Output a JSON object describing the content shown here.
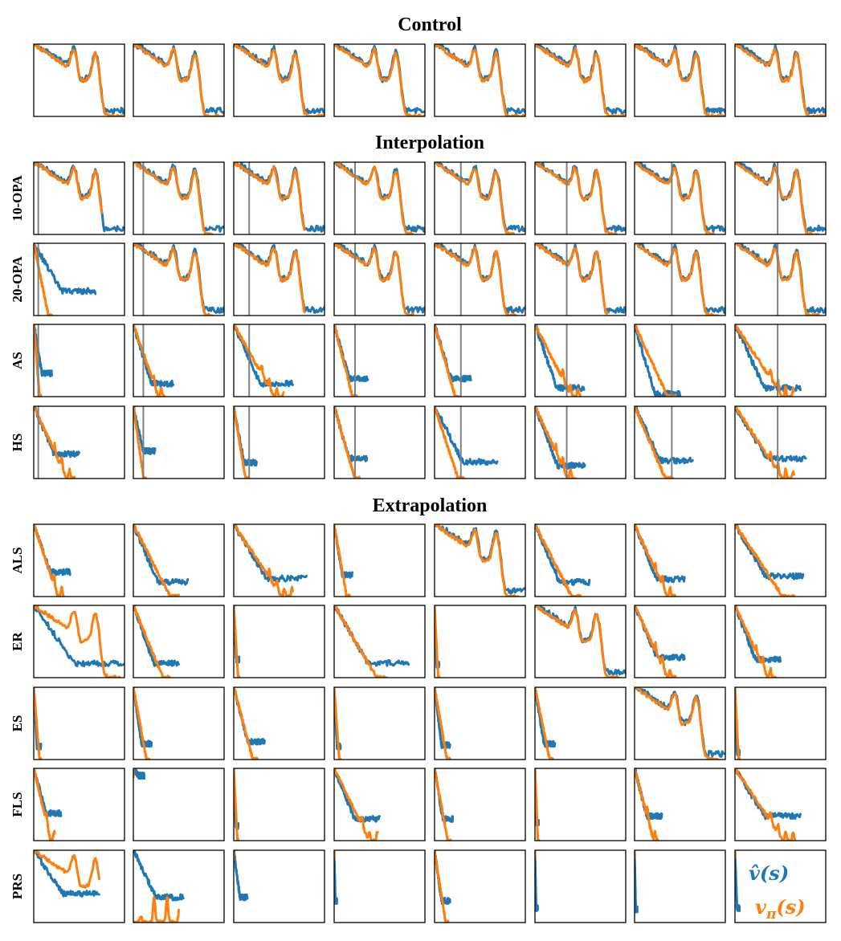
{
  "sections": [
    {
      "title": "Control",
      "rows": [
        ""
      ]
    },
    {
      "title": "Interpolation",
      "rows": [
        "10-OPA",
        "20-OPA",
        "AS",
        "HS"
      ]
    },
    {
      "title": "Extrapolation",
      "rows": [
        "ALS",
        "ER",
        "ES",
        "FLS",
        "PRS"
      ]
    }
  ],
  "legend": {
    "estimate": "v̂(s)",
    "true": "v_π(s)"
  },
  "colors": {
    "estimate": "#1f77b4",
    "true": "#ff7f0e",
    "marker": "#808080"
  },
  "chart_data": {
    "type": "line",
    "layout": "small-multiples grid, 10 rows x 8 columns",
    "axes": "no ticks or axis labels shown",
    "series": [
      {
        "key": "estimate",
        "label_ref": "legend.estimate",
        "color": "#1f77b4"
      },
      {
        "key": "true",
        "label_ref": "legend.true",
        "color": "#ff7f0e"
      }
    ],
    "rows": [
      {
        "label": "",
        "markers": null,
        "panels": [
          {
            "b": 1.0,
            "o": 1.0
          },
          {
            "b": 1.0,
            "o": 1.0
          },
          {
            "b": 1.0,
            "o": 1.0
          },
          {
            "b": 1.0,
            "o": 1.0
          },
          {
            "b": 1.0,
            "o": 1.0
          },
          {
            "b": 1.0,
            "o": 1.0
          },
          {
            "b": 1.0,
            "o": 1.0
          },
          {
            "b": 1.0,
            "o": 1.0
          }
        ]
      },
      {
        "label": "10-OPA",
        "markers": [
          0.05,
          0.11,
          0.17,
          0.23,
          0.29,
          0.35,
          0.41,
          0.47
        ],
        "panels": [
          {
            "b": 1.0,
            "o": 0.75
          },
          {
            "b": 1.0,
            "o": 0.87
          },
          {
            "b": 1.0,
            "o": 0.78
          },
          {
            "b": 1.0,
            "o": 0.87
          },
          {
            "b": 1.0,
            "o": 0.87
          },
          {
            "b": 1.0,
            "o": 0.9
          },
          {
            "b": 1.0,
            "o": 0.87
          },
          {
            "b": 1.0,
            "o": 0.92
          }
        ]
      },
      {
        "label": "20-OPA",
        "markers": [
          0.05,
          0.11,
          0.17,
          0.23,
          0.29,
          0.35,
          0.41,
          0.47
        ],
        "panels": [
          {
            "b": 0.68,
            "o": 0.2,
            "bf": 0.66
          },
          {
            "b": 1.0,
            "o": 0.87
          },
          {
            "b": 1.0,
            "o": 0.78
          },
          {
            "b": 1.0,
            "o": 0.87
          },
          {
            "b": 1.0,
            "o": 0.9
          },
          {
            "b": 1.0,
            "o": 0.8
          },
          {
            "b": 1.0,
            "o": 0.92
          },
          {
            "b": 1.0,
            "o": 0.92
          }
        ]
      },
      {
        "label": "AS",
        "markers": [
          0.05,
          0.11,
          0.17,
          0.23,
          0.29,
          0.35,
          0.41,
          0.47
        ],
        "panels": [
          {
            "b": 0.2,
            "o": 0.08,
            "bf": 0.68
          },
          {
            "b": 0.44,
            "o": 0.34,
            "bf": 0.82,
            "bumps": true
          },
          {
            "b": 0.65,
            "o": 0.55,
            "bf": 0.82,
            "bumps": true
          },
          {
            "b": 0.37,
            "o": 0.25,
            "bf": 0.75
          },
          {
            "b": 0.4,
            "o": 0.28,
            "bf": 0.75
          },
          {
            "b": 0.54,
            "o": 0.5,
            "bf": 0.88,
            "bumps": true
          },
          {
            "b": 0.5,
            "o": 0.45,
            "bf": 0.96
          },
          {
            "b": 0.72,
            "o": 0.65,
            "bf": 0.88,
            "bumps": true
          }
        ]
      },
      {
        "label": "HS",
        "markers": [
          0.05,
          0.11,
          0.17,
          0.23,
          0.29,
          0.35,
          0.41,
          0.47
        ],
        "panels": [
          {
            "b": 0.5,
            "o": 0.45,
            "bf": 0.66,
            "bumps": true
          },
          {
            "b": 0.24,
            "o": 0.14,
            "bf": 0.62
          },
          {
            "b": 0.25,
            "o": 0.16,
            "bf": 0.78
          },
          {
            "b": 0.36,
            "o": 0.28,
            "bf": 0.72
          },
          {
            "b": 0.69,
            "o": 0.32,
            "bf": 0.77
          },
          {
            "b": 0.55,
            "o": 0.45,
            "bf": 0.82,
            "bumps": true
          },
          {
            "b": 0.64,
            "o": 0.42,
            "bf": 0.75
          },
          {
            "b": 0.78,
            "o": 0.65,
            "bf": 0.72,
            "bumps": true
          }
        ]
      }
    ],
    "extrapolation_rows": [
      {
        "label": "ALS",
        "markers": null,
        "panels": [
          {
            "b": 0.4,
            "o": 0.33,
            "bf": 0.66,
            "bumps": true
          },
          {
            "b": 0.6,
            "o": 0.5,
            "bf": 0.8
          },
          {
            "b": 0.8,
            "o": 0.65,
            "bf": 0.75,
            "bumps": true
          },
          {
            "b": 0.2,
            "o": 0.17,
            "bf": 0.7
          },
          {
            "b": 1.0,
            "o": 0.92
          },
          {
            "b": 0.6,
            "o": 0.5,
            "bf": 0.8
          },
          {
            "b": 0.55,
            "o": 0.45,
            "bf": 0.76,
            "bumps": true
          },
          {
            "b": 0.75,
            "o": 0.65,
            "bf": 0.72
          }
        ]
      },
      {
        "label": "ER",
        "markers": null,
        "panels": [
          {
            "b": 1.0,
            "o": 0.95,
            "bf": 0.8,
            "bumps": true
          },
          {
            "b": 0.5,
            "o": 0.4,
            "bf": 0.8
          },
          {
            "b": 0.06,
            "o": 0.06,
            "bf": 0.75
          },
          {
            "b": 0.82,
            "o": 0.58,
            "bf": 0.8
          },
          {
            "b": 0.05,
            "o": 0.05,
            "bf": 0.82
          },
          {
            "b": 1.0,
            "o": 0.92
          },
          {
            "b": 0.55,
            "o": 0.45,
            "bf": 0.72,
            "bumps": true
          },
          {
            "b": 0.5,
            "o": 0.45,
            "bf": 0.75,
            "bumps": true
          }
        ]
      },
      {
        "label": "ES",
        "markers": null,
        "panels": [
          {
            "b": 0.08,
            "o": 0.08,
            "bf": 0.82
          },
          {
            "b": 0.2,
            "o": 0.18,
            "bf": 0.78
          },
          {
            "b": 0.34,
            "o": 0.26,
            "bf": 0.75
          },
          {
            "b": 0.07,
            "o": 0.07,
            "bf": 0.82
          },
          {
            "b": 0.17,
            "o": 0.17,
            "bf": 0.8
          },
          {
            "b": 0.22,
            "o": 0.2,
            "bf": 0.78
          },
          {
            "b": 1.0,
            "o": 0.92
          },
          {
            "b": 0.05,
            "o": 0.05,
            "bf": 0.9
          }
        ]
      },
      {
        "label": "FLS",
        "markers": null,
        "panels": [
          {
            "b": 0.3,
            "o": 0.23,
            "bf": 0.62,
            "bumps": true
          },
          {
            "b": 0.12,
            "o": 0.0,
            "bf": 0.1
          },
          {
            "b": 0.05,
            "o": 0.05,
            "bf": 0.8
          },
          {
            "b": 0.5,
            "o": 0.48,
            "bf": 0.7,
            "bumps": true
          },
          {
            "b": 0.2,
            "o": 0.18,
            "bf": 0.7
          },
          {
            "b": 0.04,
            "o": 0.04,
            "bf": 0.75
          },
          {
            "b": 0.3,
            "o": 0.26,
            "bf": 0.66,
            "bumps": true
          },
          {
            "b": 0.72,
            "o": 0.66,
            "bf": 0.66,
            "bumps": true
          }
        ]
      },
      {
        "label": "PRS",
        "markers": null,
        "panels": [
          {
            "b": 0.72,
            "o": 0.72,
            "bf": 0.6,
            "bumps": true,
            "olow": true
          },
          {
            "b": 0.55,
            "o": 0.5,
            "bf": 0.65,
            "bumps": true,
            "olow": true
          },
          {
            "b": 0.15,
            "o": 0.0,
            "bf": 0.65
          },
          {
            "b": 0.03,
            "o": 0.0,
            "bf": 0.7
          },
          {
            "b": 0.17,
            "o": 0.15,
            "bf": 0.7
          },
          {
            "b": 0.03,
            "o": 0.0,
            "bf": 0.8
          },
          {
            "b": 0.03,
            "o": 0.0,
            "bf": 0.82
          },
          {
            "b": 0.05,
            "o": 0.0,
            "bf": 0.8
          }
        ]
      }
    ]
  }
}
